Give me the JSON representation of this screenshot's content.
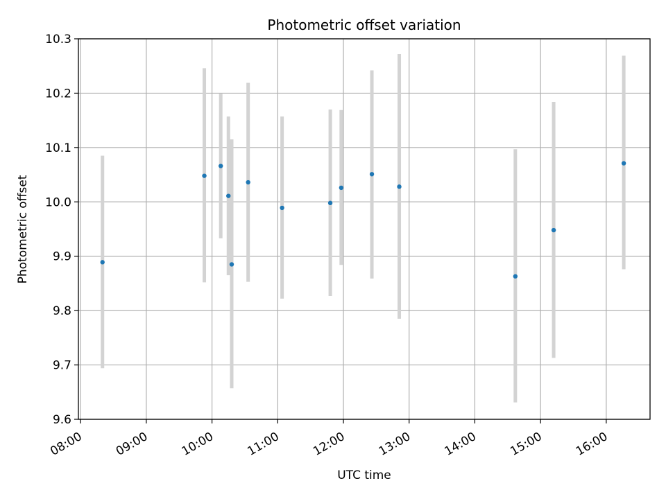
{
  "chart_data": {
    "type": "scatter",
    "title": "Photometric offset variation",
    "xlabel": "UTC time",
    "ylabel": "Photometric offset",
    "xlim": [
      "07:58",
      "16:40"
    ],
    "ylim": [
      9.6,
      10.3
    ],
    "x_ticks": [
      "08:00",
      "09:00",
      "10:00",
      "11:00",
      "12:00",
      "13:00",
      "14:00",
      "15:00",
      "16:00"
    ],
    "y_ticks": [
      "9.6",
      "9.7",
      "9.8",
      "9.9",
      "10.0",
      "10.1",
      "10.2",
      "10.3"
    ],
    "grid": true,
    "error_bar_color": "#d3d3d3",
    "point_color": "#1f77b4",
    "series": [
      {
        "points": [
          {
            "x": "08:20",
            "y": 9.889,
            "yerr_low": 9.694,
            "yerr_high": 10.085
          },
          {
            "x": "09:53",
            "y": 10.048,
            "yerr_low": 9.852,
            "yerr_high": 10.246
          },
          {
            "x": "10:08",
            "y": 10.066,
            "yerr_low": 9.933,
            "yerr_high": 10.199
          },
          {
            "x": "10:15",
            "y": 10.011,
            "yerr_low": 9.865,
            "yerr_high": 10.157
          },
          {
            "x": "10:18",
            "y": 9.885,
            "yerr_low": 9.657,
            "yerr_high": 10.115
          },
          {
            "x": "10:33",
            "y": 10.036,
            "yerr_low": 9.853,
            "yerr_high": 10.219
          },
          {
            "x": "11:04",
            "y": 9.989,
            "yerr_low": 9.822,
            "yerr_high": 10.157
          },
          {
            "x": "11:48",
            "y": 9.998,
            "yerr_low": 9.827,
            "yerr_high": 10.17
          },
          {
            "x": "11:58",
            "y": 10.026,
            "yerr_low": 9.884,
            "yerr_high": 10.169
          },
          {
            "x": "12:26",
            "y": 10.051,
            "yerr_low": 9.859,
            "yerr_high": 10.242
          },
          {
            "x": "12:51",
            "y": 10.028,
            "yerr_low": 9.785,
            "yerr_high": 10.272
          },
          {
            "x": "14:37",
            "y": 9.863,
            "yerr_low": 9.631,
            "yerr_high": 10.097
          },
          {
            "x": "15:12",
            "y": 9.948,
            "yerr_low": 9.713,
            "yerr_high": 10.184
          },
          {
            "x": "16:16",
            "y": 10.071,
            "yerr_low": 9.876,
            "yerr_high": 10.269
          }
        ]
      }
    ]
  }
}
